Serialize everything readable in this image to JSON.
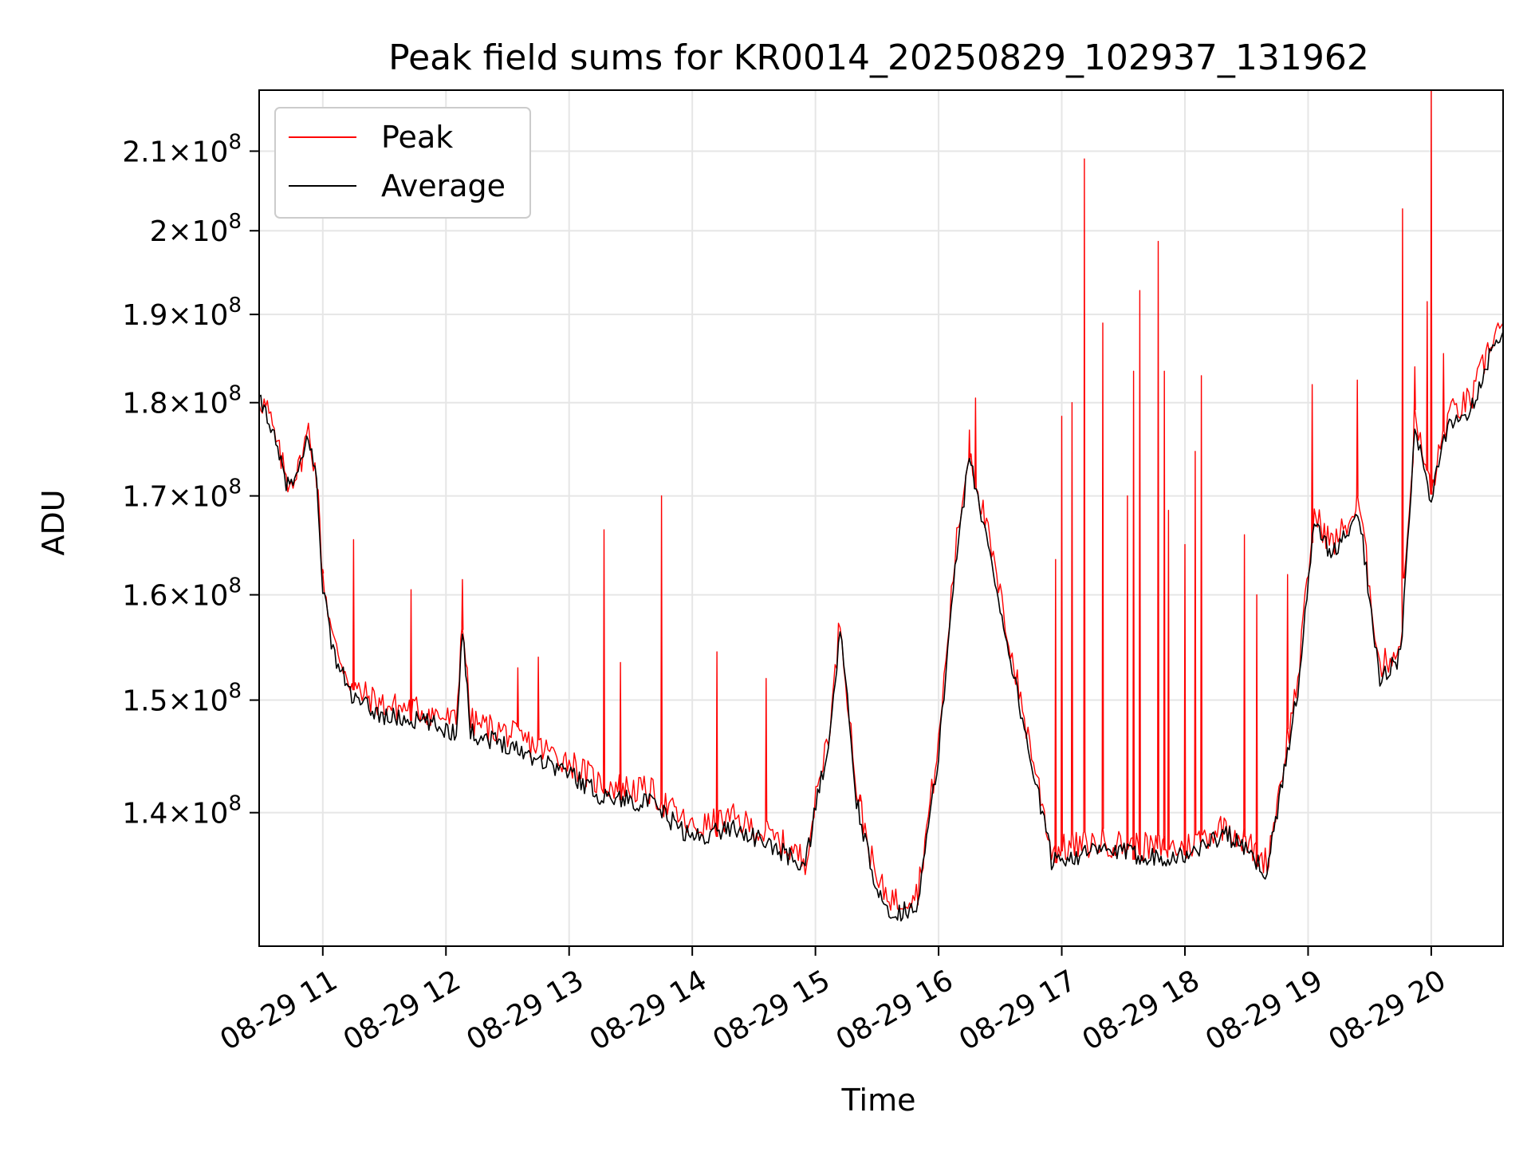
{
  "chart_data": {
    "type": "line",
    "title": "Peak field sums for KR0014_20250829_102937_131962",
    "xlabel": "Time",
    "ylabel": "ADU",
    "yscale": "log",
    "grid": true,
    "legend_position": "top-left",
    "xlim": [
      "2025-08-29 10:29",
      "2025-08-29 20:35"
    ],
    "ylim": [
      129000000,
      218000000
    ],
    "x_ticks": [
      {
        "value": "2025-08-29 11:00",
        "label": "08-29 11"
      },
      {
        "value": "2025-08-29 12:00",
        "label": "08-29 12"
      },
      {
        "value": "2025-08-29 13:00",
        "label": "08-29 13"
      },
      {
        "value": "2025-08-29 14:00",
        "label": "08-29 14"
      },
      {
        "value": "2025-08-29 15:00",
        "label": "08-29 15"
      },
      {
        "value": "2025-08-29 16:00",
        "label": "08-29 16"
      },
      {
        "value": "2025-08-29 17:00",
        "label": "08-29 17"
      },
      {
        "value": "2025-08-29 18:00",
        "label": "08-29 18"
      },
      {
        "value": "2025-08-29 19:00",
        "label": "08-29 19"
      },
      {
        "value": "2025-08-29 20:00",
        "label": "08-29 20"
      }
    ],
    "y_ticks": [
      {
        "value": 140000000,
        "mantissa": "1.4",
        "base": "10",
        "exp": "8"
      },
      {
        "value": 150000000,
        "mantissa": "1.5",
        "base": "10",
        "exp": "8"
      },
      {
        "value": 160000000,
        "mantissa": "1.6",
        "base": "10",
        "exp": "8"
      },
      {
        "value": 170000000,
        "mantissa": "1.7",
        "base": "10",
        "exp": "8"
      },
      {
        "value": 180000000,
        "mantissa": "1.8",
        "base": "10",
        "exp": "8"
      },
      {
        "value": 190000000,
        "mantissa": "1.9",
        "base": "10",
        "exp": "8"
      },
      {
        "value": 200000000,
        "mantissa": "2",
        "base": "10",
        "exp": "8"
      },
      {
        "value": 210000000,
        "mantissa": "2.1",
        "base": "10",
        "exp": "8"
      }
    ],
    "series": [
      {
        "name": "Peak",
        "color": "#ff0000",
        "baseline_points": [
          [
            "2025-08-29 10:29",
            180500000
          ],
          [
            "2025-08-29 10:33",
            179300000
          ],
          [
            "2025-08-29 10:38",
            175000000
          ],
          [
            "2025-08-29 10:43",
            171500000
          ],
          [
            "2025-08-29 10:48",
            172600000
          ],
          [
            "2025-08-29 10:53",
            177000000
          ],
          [
            "2025-08-29 10:57",
            172000000
          ],
          [
            "2025-08-29 11:00",
            162000000
          ],
          [
            "2025-08-29 11:05",
            155500000
          ],
          [
            "2025-08-29 11:15",
            151000000
          ],
          [
            "2025-08-29 11:30",
            149500000
          ],
          [
            "2025-08-29 11:50",
            149000000
          ],
          [
            "2025-08-29 12:05",
            148000000
          ],
          [
            "2025-08-29 12:08",
            157800000
          ],
          [
            "2025-08-29 12:12",
            148000000
          ],
          [
            "2025-08-29 12:30",
            147000000
          ],
          [
            "2025-08-29 13:00",
            144500000
          ],
          [
            "2025-08-29 13:15",
            142500000
          ],
          [
            "2025-08-29 13:40",
            141800000
          ],
          [
            "2025-08-29 14:00",
            138600000
          ],
          [
            "2025-08-29 14:20",
            139500000
          ],
          [
            "2025-08-29 14:40",
            137800000
          ],
          [
            "2025-08-29 14:55",
            136000000
          ],
          [
            "2025-08-29 15:08",
            149000000
          ],
          [
            "2025-08-29 15:12",
            157800000
          ],
          [
            "2025-08-29 15:20",
            142000000
          ],
          [
            "2025-08-29 15:30",
            134000000
          ],
          [
            "2025-08-29 15:40",
            132500000
          ],
          [
            "2025-08-29 15:50",
            133500000
          ],
          [
            "2025-08-29 16:00",
            146000000
          ],
          [
            "2025-08-29 16:08",
            164000000
          ],
          [
            "2025-08-29 16:15",
            175000000
          ],
          [
            "2025-08-29 16:25",
            165000000
          ],
          [
            "2025-08-29 16:40",
            150000000
          ],
          [
            "2025-08-29 16:48",
            143000000
          ],
          [
            "2025-08-29 16:55",
            136800000
          ],
          [
            "2025-08-29 17:20",
            137500000
          ],
          [
            "2025-08-29 17:45",
            137000000
          ],
          [
            "2025-08-29 18:00",
            137000000
          ],
          [
            "2025-08-29 18:20",
            139000000
          ],
          [
            "2025-08-29 18:40",
            135800000
          ],
          [
            "2025-08-29 18:55",
            152000000
          ],
          [
            "2025-08-29 19:03",
            168000000
          ],
          [
            "2025-08-29 19:12",
            165000000
          ],
          [
            "2025-08-29 19:25",
            169000000
          ],
          [
            "2025-08-29 19:35",
            153000000
          ],
          [
            "2025-08-29 19:45",
            155000000
          ],
          [
            "2025-08-29 19:52",
            178000000
          ],
          [
            "2025-08-29 20:00",
            170500000
          ],
          [
            "2025-08-29 20:08",
            178500000
          ],
          [
            "2025-08-29 20:20",
            180500000
          ],
          [
            "2025-08-29 20:30",
            187500000
          ],
          [
            "2025-08-29 20:35",
            189000000
          ]
        ],
        "spikes": [
          [
            "2025-08-29 11:00",
            162500000
          ],
          [
            "2025-08-29 11:15",
            165500000
          ],
          [
            "2025-08-29 11:43",
            160500000
          ],
          [
            "2025-08-29 12:08",
            161500000
          ],
          [
            "2025-08-29 12:35",
            153000000
          ],
          [
            "2025-08-29 12:45",
            154000000
          ],
          [
            "2025-08-29 13:17",
            166500000
          ],
          [
            "2025-08-29 13:25",
            153500000
          ],
          [
            "2025-08-29 13:45",
            170000000
          ],
          [
            "2025-08-29 14:12",
            154500000
          ],
          [
            "2025-08-29 14:36",
            152000000
          ],
          [
            "2025-08-29 15:22",
            141500000
          ],
          [
            "2025-08-29 16:15",
            177000000
          ],
          [
            "2025-08-29 16:18",
            180500000
          ],
          [
            "2025-08-29 16:57",
            163500000
          ],
          [
            "2025-08-29 17:00",
            178500000
          ],
          [
            "2025-08-29 17:05",
            180000000
          ],
          [
            "2025-08-29 17:11",
            209000000
          ],
          [
            "2025-08-29 17:20",
            189000000
          ],
          [
            "2025-08-29 17:32",
            170000000
          ],
          [
            "2025-08-29 17:35",
            183500000
          ],
          [
            "2025-08-29 17:38",
            192800000
          ],
          [
            "2025-08-29 17:47",
            198700000
          ],
          [
            "2025-08-29 17:50",
            183500000
          ],
          [
            "2025-08-29 17:52",
            168500000
          ],
          [
            "2025-08-29 18:00",
            165000000
          ],
          [
            "2025-08-29 18:05",
            174700000
          ],
          [
            "2025-08-29 18:08",
            183000000
          ],
          [
            "2025-08-29 18:29",
            166000000
          ],
          [
            "2025-08-29 18:35",
            160000000
          ],
          [
            "2025-08-29 18:50",
            162000000
          ],
          [
            "2025-08-29 19:02",
            182000000
          ],
          [
            "2025-08-29 19:24",
            182500000
          ],
          [
            "2025-08-29 19:46",
            202700000
          ],
          [
            "2025-08-29 19:52",
            184000000
          ],
          [
            "2025-08-29 19:58",
            191500000
          ],
          [
            "2025-08-29 20:00",
            218000000
          ],
          [
            "2025-08-29 20:06",
            185500000
          ]
        ]
      },
      {
        "name": "Average",
        "color": "#000000",
        "points": [
          [
            "2025-08-29 10:29",
            180000000
          ],
          [
            "2025-08-29 10:33",
            178800000
          ],
          [
            "2025-08-29 10:38",
            174500000
          ],
          [
            "2025-08-29 10:43",
            171000000
          ],
          [
            "2025-08-29 10:48",
            172000000
          ],
          [
            "2025-08-29 10:53",
            176500000
          ],
          [
            "2025-08-29 10:57",
            171500000
          ],
          [
            "2025-08-29 11:00",
            161000000
          ],
          [
            "2025-08-29 11:05",
            154500000
          ],
          [
            "2025-08-29 11:15",
            150000000
          ],
          [
            "2025-08-29 11:30",
            148500000
          ],
          [
            "2025-08-29 11:50",
            148000000
          ],
          [
            "2025-08-29 12:05",
            147000000
          ],
          [
            "2025-08-29 12:08",
            157000000
          ],
          [
            "2025-08-29 12:12",
            147000000
          ],
          [
            "2025-08-29 12:30",
            146000000
          ],
          [
            "2025-08-29 13:00",
            143500000
          ],
          [
            "2025-08-29 13:15",
            141500000
          ],
          [
            "2025-08-29 13:40",
            140800000
          ],
          [
            "2025-08-29 14:00",
            137800000
          ],
          [
            "2025-08-29 14:20",
            138800000
          ],
          [
            "2025-08-29 14:40",
            137000000
          ],
          [
            "2025-08-29 14:55",
            135500000
          ],
          [
            "2025-08-29 15:08",
            148000000
          ],
          [
            "2025-08-29 15:12",
            157000000
          ],
          [
            "2025-08-29 15:20",
            141000000
          ],
          [
            "2025-08-29 15:30",
            133000000
          ],
          [
            "2025-08-29 15:40",
            131500000
          ],
          [
            "2025-08-29 15:50",
            132500000
          ],
          [
            "2025-08-29 16:00",
            145000000
          ],
          [
            "2025-08-29 16:08",
            163000000
          ],
          [
            "2025-08-29 16:15",
            174000000
          ],
          [
            "2025-08-29 16:25",
            164000000
          ],
          [
            "2025-08-29 16:40",
            149000000
          ],
          [
            "2025-08-29 16:48",
            142000000
          ],
          [
            "2025-08-29 16:55",
            136000000
          ],
          [
            "2025-08-29 17:20",
            136800000
          ],
          [
            "2025-08-29 17:45",
            136300000
          ],
          [
            "2025-08-29 18:00",
            136300000
          ],
          [
            "2025-08-29 18:20",
            138300000
          ],
          [
            "2025-08-29 18:40",
            135000000
          ],
          [
            "2025-08-29 18:55",
            151000000
          ],
          [
            "2025-08-29 19:03",
            167000000
          ],
          [
            "2025-08-29 19:12",
            164000000
          ],
          [
            "2025-08-29 19:25",
            168000000
          ],
          [
            "2025-08-29 19:35",
            152000000
          ],
          [
            "2025-08-29 19:45",
            154000000
          ],
          [
            "2025-08-29 19:52",
            177000000
          ],
          [
            "2025-08-29 20:00",
            169500000
          ],
          [
            "2025-08-29 20:08",
            177500000
          ],
          [
            "2025-08-29 20:20",
            179500000
          ],
          [
            "2025-08-29 20:30",
            186500000
          ],
          [
            "2025-08-29 20:35",
            188000000
          ]
        ]
      }
    ]
  }
}
